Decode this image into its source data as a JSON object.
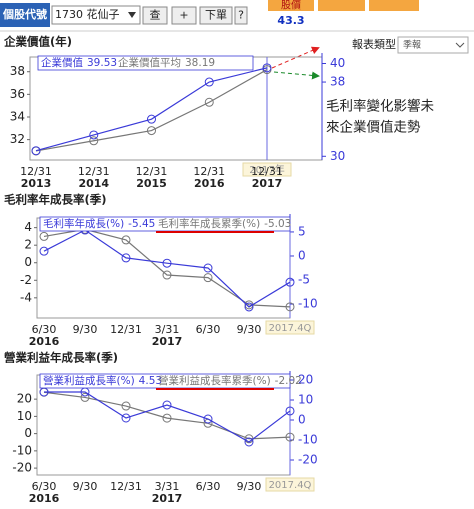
{
  "header": {
    "stock_label": "個股代號",
    "stock_input": "1730 花仙子",
    "buttons": [
      "查",
      "+",
      "下單",
      "?"
    ],
    "quote": {
      "header": "股價",
      "value": "43.3"
    },
    "report_label": "報表類型",
    "report_select": "季報"
  },
  "annotation": [
    "毛利率變化影響未",
    "來企業價值走勢"
  ],
  "chart_data": [
    {
      "type": "line",
      "title": "企業價值(年)",
      "categories": [
        "12/31",
        "12/31",
        "12/31",
        "12/31",
        "12/31"
      ],
      "category_years": [
        "2013",
        "2014",
        "2015",
        "2016",
        "2017"
      ],
      "highlight": "2017年",
      "series": [
        {
          "name": "企業價值",
          "color": "#3a3ad8",
          "axis": "y2",
          "values": [
            30.6,
            32.3,
            34,
            38,
            39.53
          ]
        },
        {
          "name": "企業價值平均",
          "color": "#777777",
          "values": [
            31,
            31.9,
            32.8,
            35.3,
            38.19
          ]
        }
      ],
      "ylim": [
        30.2,
        39.3
      ],
      "yticks": [
        32,
        34,
        36,
        38
      ],
      "y2lim": [
        29.6,
        40.7
      ],
      "y2ticks": [
        30,
        38,
        40
      ]
    },
    {
      "type": "line",
      "title": "毛利率年成長率(季)",
      "categories": [
        "6/30",
        "9/30",
        "12/31",
        "3/31",
        "6/30",
        "9/30",
        null
      ],
      "category_years": [
        "2016",
        null,
        null,
        "2017",
        null,
        null,
        null
      ],
      "highlight": "2017.4Q",
      "series": [
        {
          "name": "毛利率年成長(%)",
          "color": "#3a3ad8",
          "axis": "y2",
          "values": [
            1,
            5.4,
            -0.4,
            -1.5,
            -2.5,
            -10.6,
            -5.45
          ]
        },
        {
          "name": "毛利率年成長累季(%)",
          "color": "#777777",
          "values": [
            3,
            3.8,
            2.6,
            -1.4,
            -1.7,
            -4.8,
            -5.03
          ]
        }
      ],
      "ylim": [
        -6.3,
        5.1
      ],
      "yticks": [
        4,
        2,
        0,
        -2,
        -4
      ],
      "y2lim": [
        -12.9,
        7.9
      ],
      "y2ticks": [
        5,
        0,
        -5,
        -10
      ]
    },
    {
      "type": "line",
      "title": "營業利益年成長率(季)",
      "categories": [
        "6/30",
        "9/30",
        "12/31",
        "3/31",
        "6/30",
        "9/30",
        null
      ],
      "category_years": [
        "2016",
        null,
        null,
        "2017",
        null,
        null,
        null
      ],
      "highlight": "2017.4Q",
      "series": [
        {
          "name": "營業利益成長率(%)",
          "color": "#3a3ad8",
          "axis": "y2",
          "values": [
            14,
            14,
            1,
            7.5,
            0.5,
            -11,
            4.53
          ]
        },
        {
          "name": "營業利益成長率累季(%)",
          "color": "#777777",
          "values": [
            24,
            21,
            16,
            9,
            6,
            -3,
            -2.02
          ]
        }
      ],
      "ylim": [
        -24,
        34
      ],
      "yticks": [
        20,
        10,
        0,
        -10,
        -20
      ],
      "y2lim": [
        -27.5,
        22.5
      ],
      "y2ticks": [
        20,
        10,
        0,
        -10,
        -20
      ]
    }
  ]
}
